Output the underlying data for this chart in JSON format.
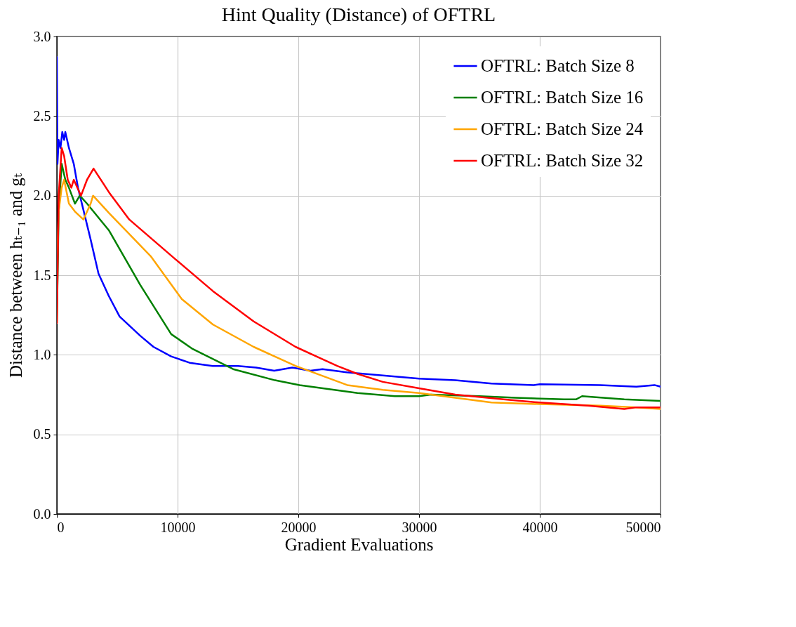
{
  "chart_data": {
    "type": "line",
    "title": "Hint Quality (Distance) of OFTRL",
    "xlabel": "Gradient Evaluations",
    "ylabel": "Distance between hₜ₋₁ and gₜ",
    "xlim": [
      0,
      50000
    ],
    "xticks": [
      0,
      10000,
      20000,
      30000,
      40000,
      50000
    ],
    "ylim": [
      0.0,
      3.0
    ],
    "yticks": [
      {
        "value": 0,
        "label": "0.0"
      },
      0.5,
      {
        "value": 1,
        "label": "1.0"
      },
      1.5,
      {
        "value": 2,
        "label": "2.0"
      },
      2.5,
      {
        "value": 3,
        "label": "3.0"
      }
    ],
    "grid": true,
    "legend": "top right",
    "line_style": "solid",
    "marker": "none",
    "series": [
      {
        "name": "OFTRL: Batch Size 8",
        "color": "#0000ff",
        "x": [
          0,
          50,
          150,
          300,
          450,
          600,
          700,
          1000,
          1400,
          1750,
          2780,
          3450,
          4300,
          5200,
          6900,
          8000,
          9470,
          11000,
          12900,
          15000,
          16500,
          18000,
          19500,
          21000,
          22000,
          24000,
          27000,
          30000,
          33000,
          36000,
          39500,
          40000,
          45000,
          48000,
          49500,
          50000
        ],
        "values": [
          2.87,
          2.2,
          2.35,
          2.3,
          2.4,
          2.35,
          2.4,
          2.3,
          2.2,
          2.05,
          1.73,
          1.51,
          1.37,
          1.24,
          1.12,
          1.05,
          0.99,
          0.95,
          0.93,
          0.93,
          0.92,
          0.9,
          0.92,
          0.9,
          0.91,
          0.89,
          0.87,
          0.85,
          0.84,
          0.82,
          0.81,
          0.815,
          0.81,
          0.8,
          0.81,
          0.8
        ]
      },
      {
        "name": "OFTRL: Batch Size 16",
        "color": "#008000",
        "x": [
          0,
          150,
          400,
          700,
          1000,
          1500,
          1900,
          2500,
          4330,
          6900,
          9470,
          11180,
          14600,
          18070,
          20100,
          24900,
          28000,
          30000,
          31000,
          35000,
          38000,
          42000,
          43000,
          43500,
          47000,
          50000
        ],
        "values": [
          1.2,
          1.9,
          2.2,
          2.1,
          2.05,
          1.95,
          2.0,
          1.95,
          1.78,
          1.44,
          1.13,
          1.04,
          0.91,
          0.84,
          0.81,
          0.76,
          0.74,
          0.74,
          0.75,
          0.74,
          0.73,
          0.72,
          0.72,
          0.74,
          0.72,
          0.71
        ]
      },
      {
        "name": "OFTRL: Batch Size 24",
        "color": "#ffa500",
        "x": [
          0,
          150,
          400,
          600,
          1000,
          1500,
          2200,
          2800,
          3000,
          4330,
          7770,
          10350,
          12930,
          16300,
          19770,
          24050,
          25000,
          27000,
          30000,
          34000,
          36000,
          40000,
          45000,
          48000,
          50000
        ],
        "values": [
          1.5,
          1.9,
          2.05,
          2.1,
          1.95,
          1.9,
          1.85,
          1.95,
          2.0,
          1.89,
          1.62,
          1.35,
          1.19,
          1.05,
          0.93,
          0.81,
          0.8,
          0.78,
          0.76,
          0.72,
          0.7,
          0.69,
          0.68,
          0.67,
          0.66
        ]
      },
      {
        "name": "OFTRL: Batch Size 32",
        "color": "#ff0000",
        "x": [
          0,
          150,
          400,
          600,
          900,
          1200,
          1400,
          2000,
          2500,
          3040,
          4330,
          6000,
          9830,
          12930,
          16300,
          19770,
          23220,
          24900,
          27000,
          30000,
          33000,
          37000,
          40000,
          44000,
          47000,
          48000,
          50000
        ],
        "values": [
          1.2,
          2.0,
          2.3,
          2.25,
          2.1,
          2.05,
          2.1,
          2.0,
          2.1,
          2.17,
          2.02,
          1.85,
          1.6,
          1.4,
          1.21,
          1.05,
          0.93,
          0.88,
          0.83,
          0.79,
          0.75,
          0.72,
          0.7,
          0.68,
          0.66,
          0.67,
          0.67
        ]
      }
    ]
  }
}
